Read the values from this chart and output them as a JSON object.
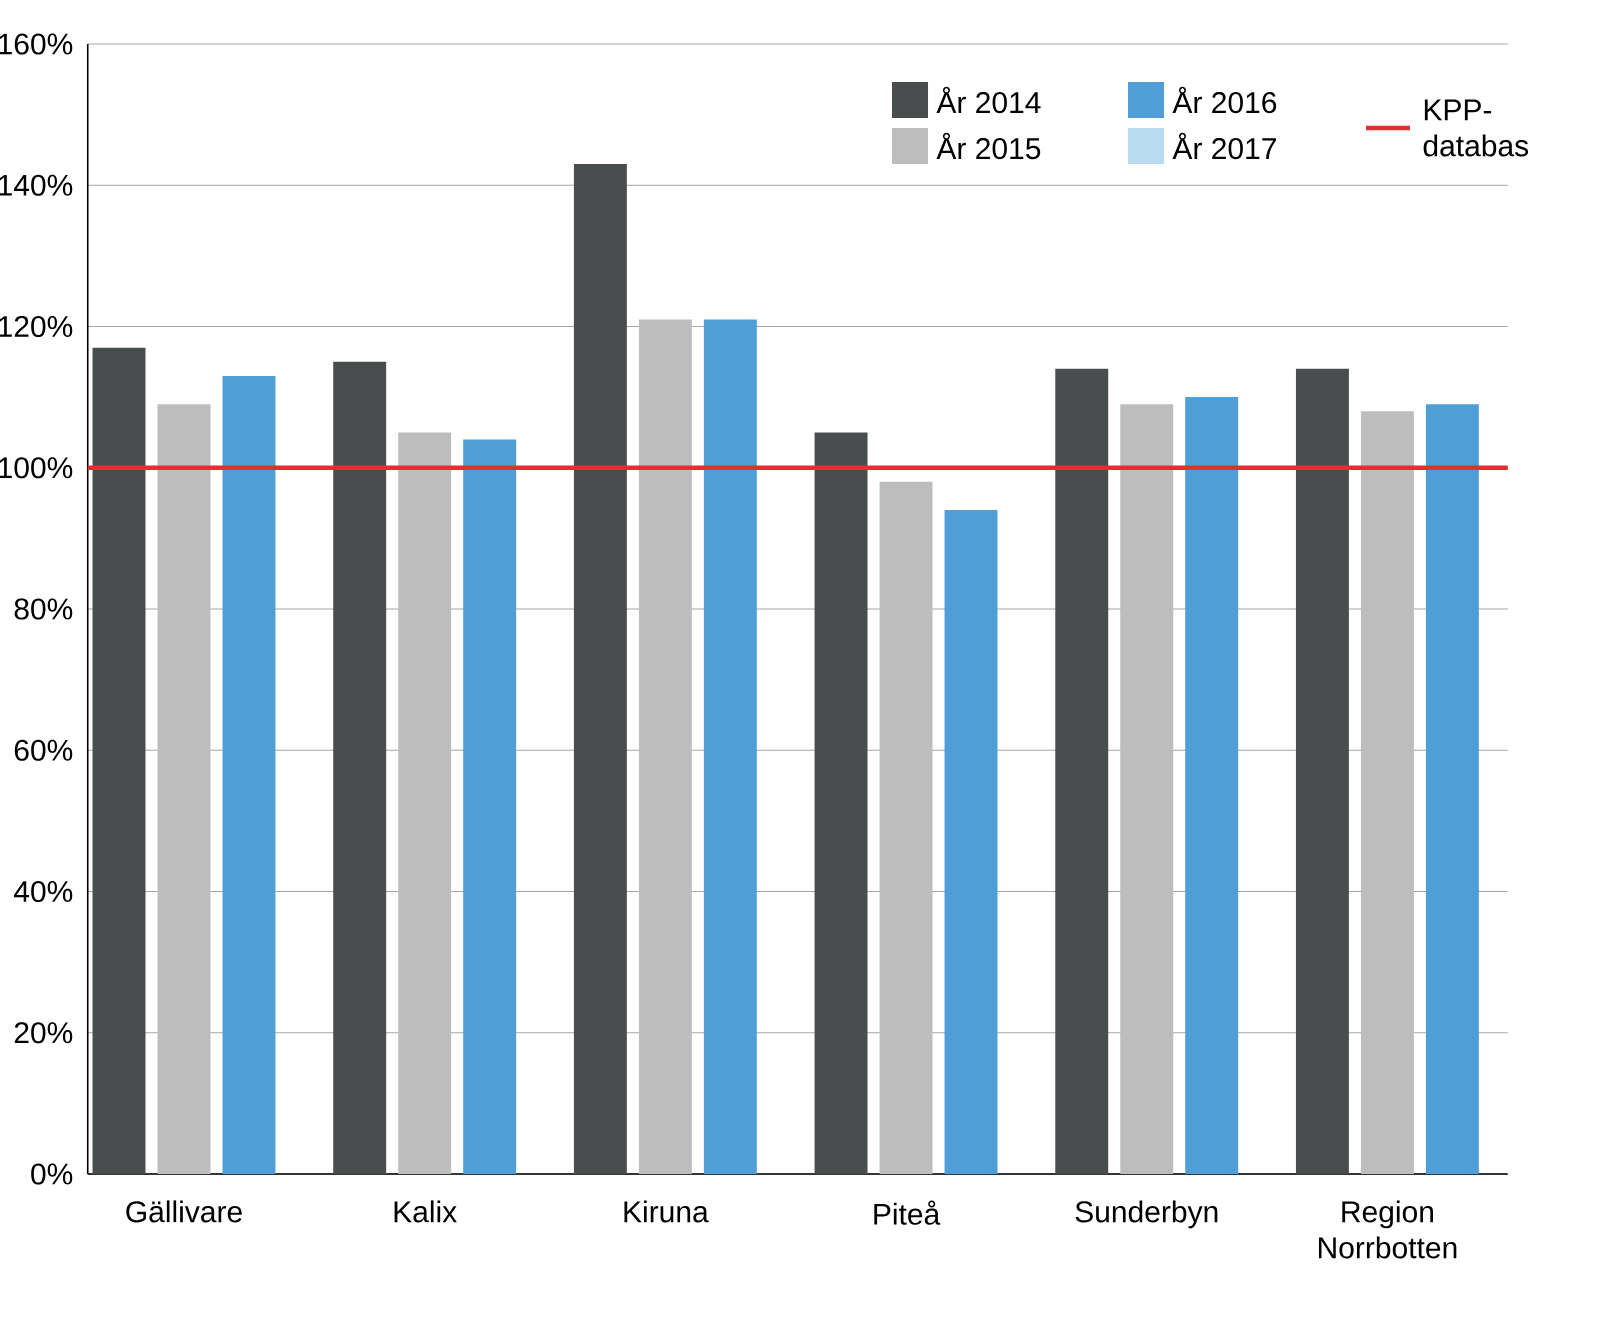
{
  "chart_data": {
    "type": "bar",
    "categories": [
      "Gällivare",
      "Kalix",
      "Kiruna",
      "Piteå",
      "Sunderbyn",
      "Region Norrbotten"
    ],
    "series": [
      {
        "name": "År 2014",
        "color": "#4a4d4e",
        "values": [
          117,
          115,
          143,
          105,
          114,
          114
        ]
      },
      {
        "name": "År 2015",
        "color": "#bdbdbd",
        "values": [
          109,
          105,
          121,
          98,
          109,
          108
        ]
      },
      {
        "name": "År 2016",
        "color": "#4f9fd6",
        "values": [
          113,
          104,
          121,
          94,
          110,
          109
        ]
      },
      {
        "name": "År 2017",
        "color": "#b8dcf2",
        "values": [
          null,
          null,
          null,
          null,
          null,
          null
        ]
      }
    ],
    "ylim": [
      0,
      160
    ],
    "yticks": [
      {
        "value": 0,
        "label": "0%"
      },
      {
        "value": 20,
        "label": "20%"
      },
      {
        "value": 40,
        "label": "40%"
      },
      {
        "value": 60,
        "label": "60%"
      },
      {
        "value": 80,
        "label": "80%"
      },
      {
        "value": 100,
        "label": "100%"
      },
      {
        "value": 120,
        "label": "120%"
      },
      {
        "value": 140,
        "label": "140%"
      },
      {
        "value": 160,
        "label": "160%"
      }
    ],
    "grid": "y",
    "legend": "top right",
    "ref_lines": [
      {
        "axis": "y",
        "value": 100,
        "label": "KPP-databas",
        "color": "#e03030"
      }
    ]
  }
}
